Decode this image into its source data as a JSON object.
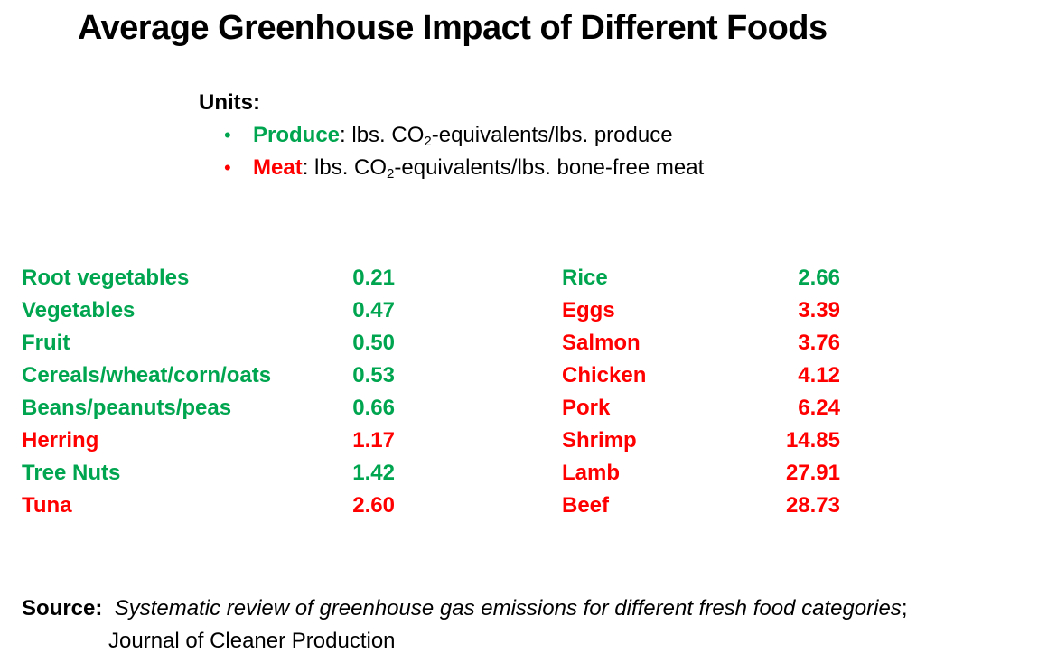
{
  "title": "Average Greenhouse Impact of Different Foods",
  "units": {
    "heading": "Units:",
    "produce": {
      "bullet": "•",
      "label": "Produce",
      "pre": ": lbs. CO",
      "sub": "2",
      "post": "-equivalents/lbs. produce"
    },
    "meat": {
      "bullet": "•",
      "label": "Meat",
      "pre": ": lbs. CO",
      "sub": "2",
      "post": "-equivalents/lbs. bone-free meat"
    }
  },
  "colors": {
    "produce": "#00a550",
    "meat": "#ff0000"
  },
  "foods_left": [
    {
      "name": "Root vegetables",
      "value": "0.21",
      "category": "produce"
    },
    {
      "name": "Vegetables",
      "value": "0.47",
      "category": "produce"
    },
    {
      "name": "Fruit",
      "value": "0.50",
      "category": "produce"
    },
    {
      "name": "Cereals/wheat/corn/oats",
      "value": "0.53",
      "category": "produce"
    },
    {
      "name": "Beans/peanuts/peas",
      "value": "0.66",
      "category": "produce"
    },
    {
      "name": "Herring",
      "value": "1.17",
      "category": "meat"
    },
    {
      "name": "Tree Nuts",
      "value": "1.42",
      "category": "produce"
    },
    {
      "name": "Tuna",
      "value": "2.60",
      "category": "meat"
    }
  ],
  "foods_right": [
    {
      "name": "Rice",
      "value": "2.66",
      "category": "produce"
    },
    {
      "name": "Eggs",
      "value": "3.39",
      "category": "meat"
    },
    {
      "name": "Salmon",
      "value": "3.76",
      "category": "meat"
    },
    {
      "name": "Chicken",
      "value": "4.12",
      "category": "meat"
    },
    {
      "name": "Pork",
      "value": "6.24",
      "category": "meat"
    },
    {
      "name": "Shrimp",
      "value": "14.85",
      "category": "meat"
    },
    {
      "name": "Lamb",
      "value": "27.91",
      "category": "meat"
    },
    {
      "name": "Beef",
      "value": "28.73",
      "category": "meat"
    }
  ],
  "source": {
    "label": "Source:",
    "citation": "Systematic review of greenhouse gas emissions for different fresh food categories",
    "separator": ";",
    "journal": "Journal of Cleaner Production"
  }
}
